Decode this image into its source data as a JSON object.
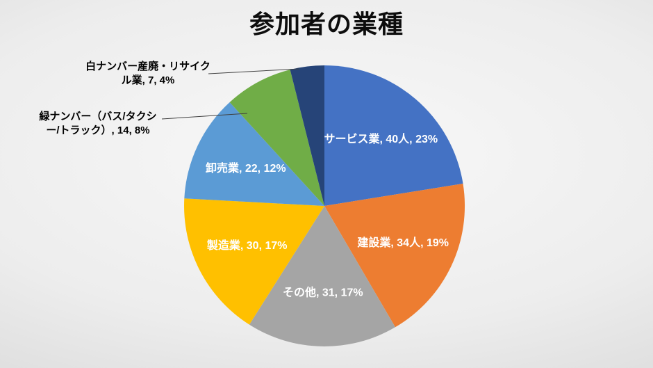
{
  "slide": {
    "title": "参加者の業種"
  },
  "chart_data": {
    "type": "pie",
    "title": "参加者の業種",
    "legend": "none",
    "start_angle_deg": 0,
    "direction": "clockwise",
    "slices": [
      {
        "label": "サービス業",
        "value": 40,
        "count_text": "40人",
        "percent": "23%",
        "label_text": "サービス業, 40人, 23%",
        "color": "#4472C4",
        "placement": "inside"
      },
      {
        "label": "建設業",
        "value": 34,
        "count_text": "34人",
        "percent": "19%",
        "label_text": "建設業, 34人, 19%",
        "color": "#ED7D31",
        "placement": "inside"
      },
      {
        "label": "その他",
        "value": 31,
        "count_text": "31",
        "percent": "17%",
        "label_text": "その他, 31, 17%",
        "color": "#A5A5A5",
        "placement": "inside"
      },
      {
        "label": "製造業",
        "value": 30,
        "count_text": "30",
        "percent": "17%",
        "label_text": "製造業, 30, 17%",
        "color": "#FFC000",
        "placement": "inside"
      },
      {
        "label": "卸売業",
        "value": 22,
        "count_text": "22",
        "percent": "12%",
        "label_text": "卸売業, 22, 12%",
        "color": "#5B9BD5",
        "placement": "inside"
      },
      {
        "label": "緑ナンバー（バス/タクシー/トラック）",
        "value": 14,
        "count_text": "14",
        "percent": "8%",
        "label_text": "緑ナンバー（バス/タクシー/トラック）, 14, 8%",
        "color": "#70AD47",
        "placement": "outside"
      },
      {
        "label": "白ナンバー産廃・リサイクル業",
        "value": 7,
        "count_text": "7",
        "percent": "4%",
        "label_text": "白ナンバー産廃・リサイクル業, 7, 4%",
        "color": "#264478",
        "placement": "outside"
      }
    ]
  }
}
